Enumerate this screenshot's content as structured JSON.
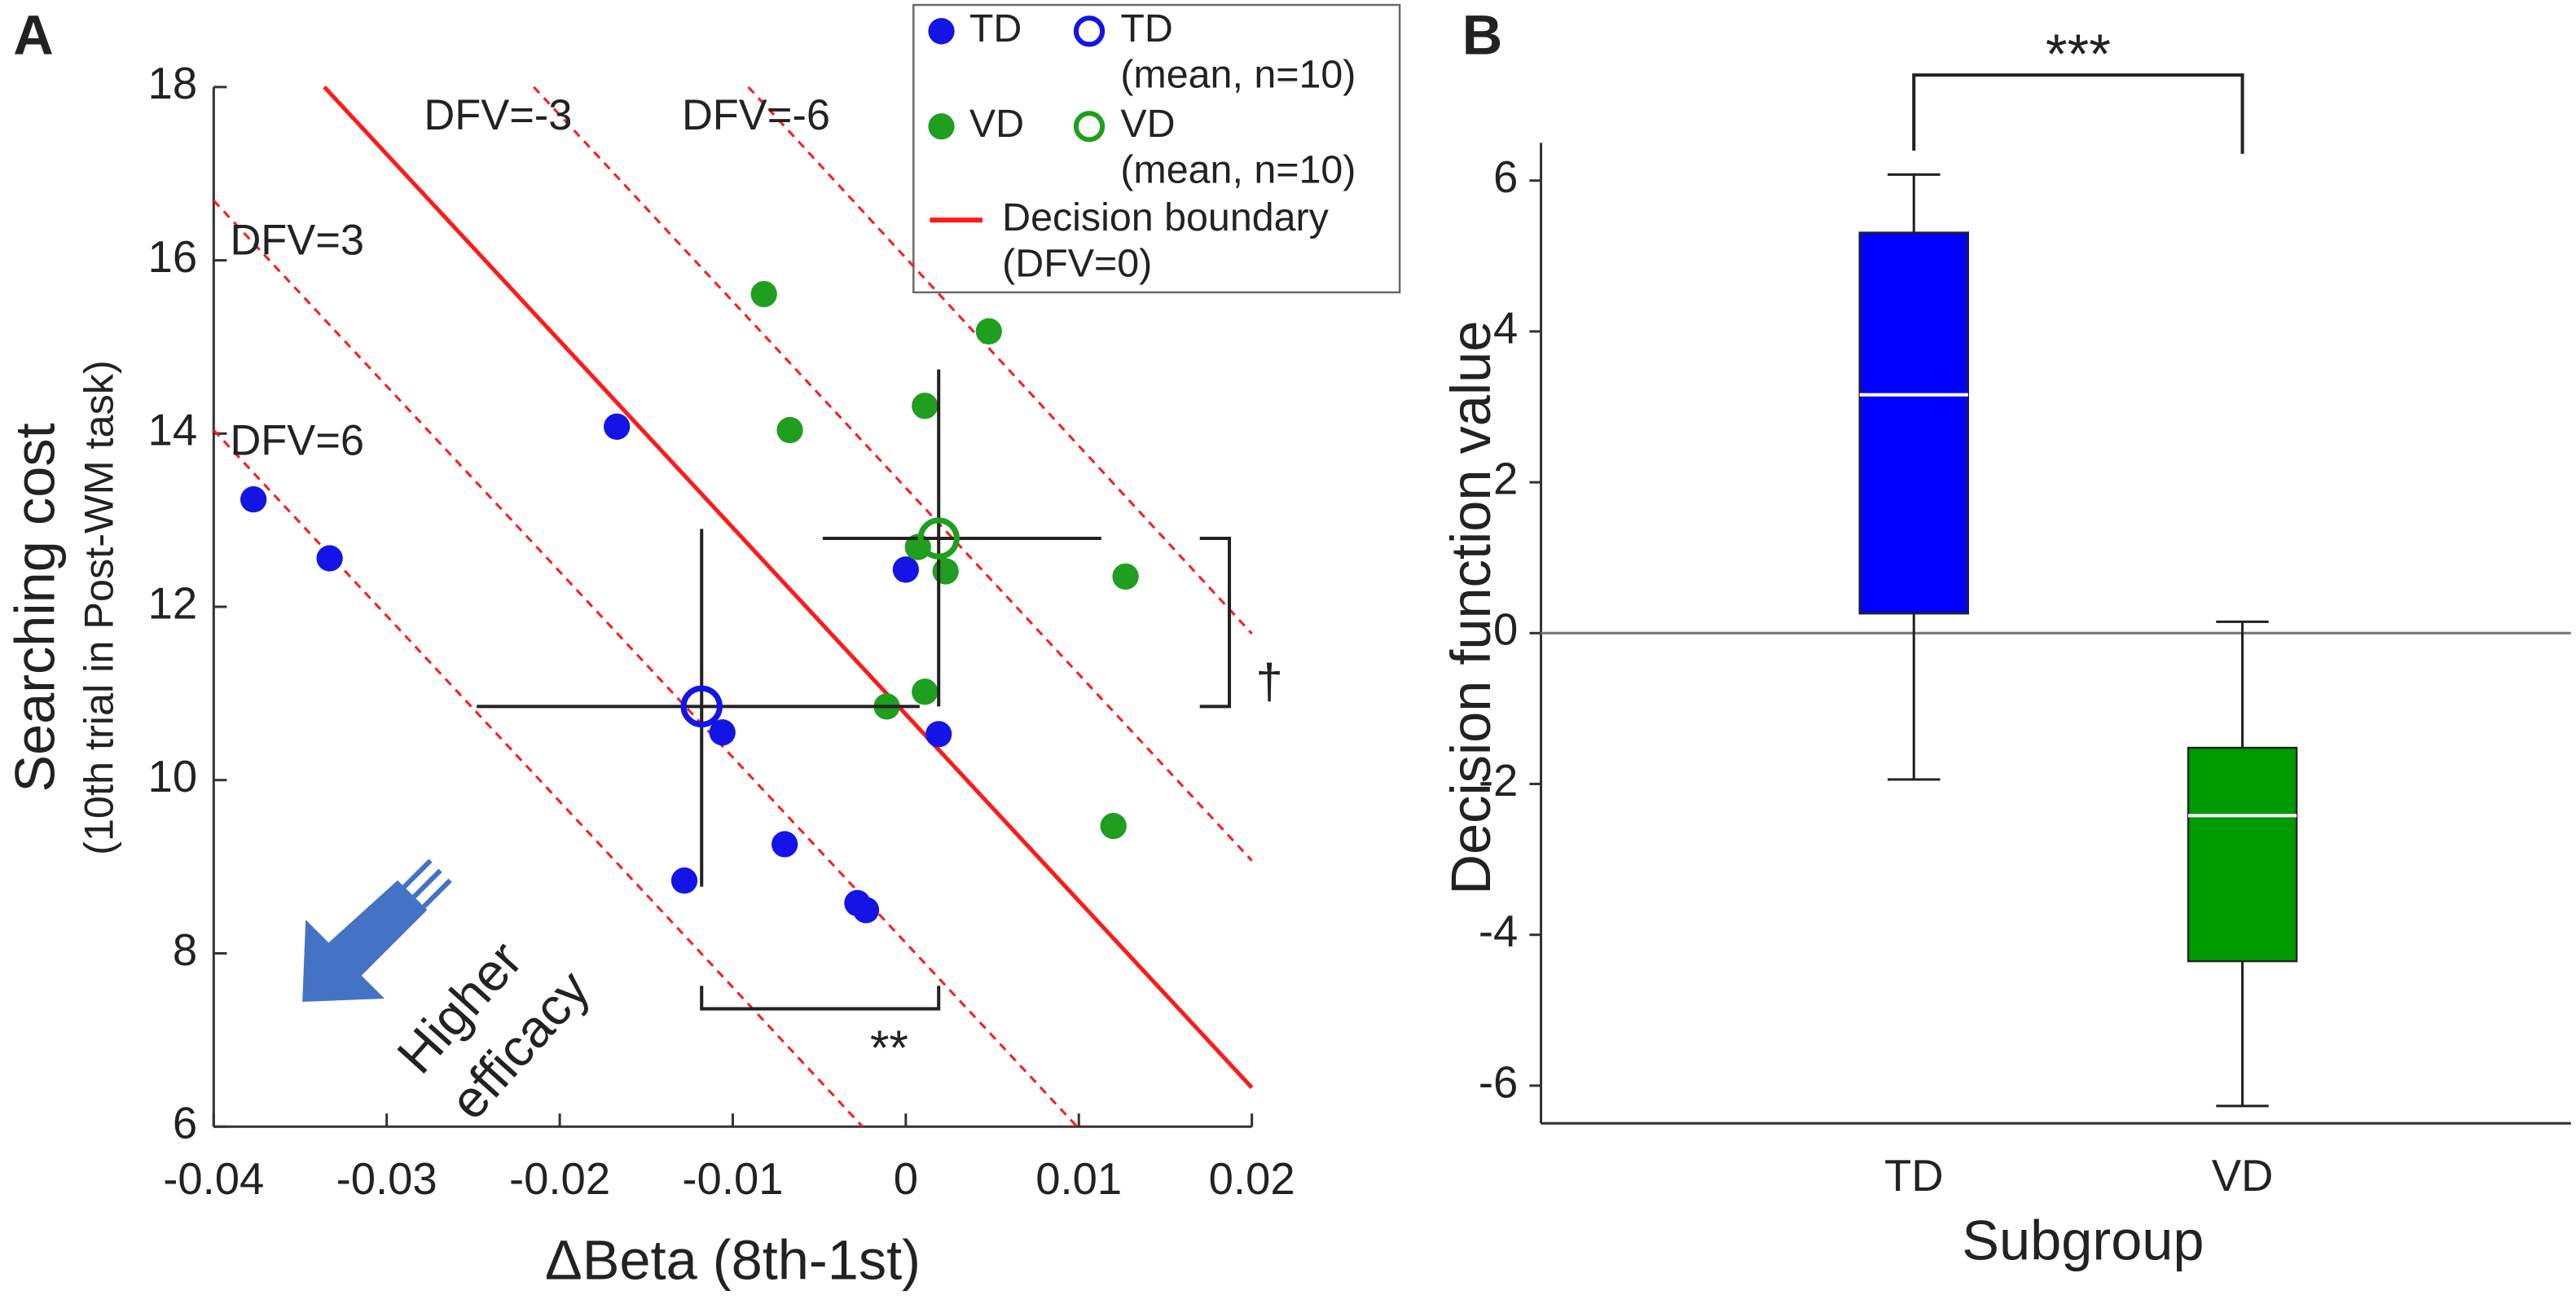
{
  "chart_data": [
    {
      "type": "scatter",
      "panel_label": "A",
      "x_label": "ΔBeta (8th-1st)",
      "y_label": "Searching cost",
      "y_label_sub": "(10th trial in Post-WM task)",
      "xlim": [
        -0.04,
        0.02
      ],
      "xticks": [
        -0.04,
        -0.03,
        -0.02,
        -0.01,
        0,
        0.01,
        0.02
      ],
      "ylim": [
        6,
        18
      ],
      "yticks": [
        6,
        8,
        10,
        12,
        14,
        16,
        18
      ],
      "series": [
        {
          "name": "TD",
          "color": "#1414e6",
          "x": [
            -0.0377,
            -0.0333,
            -0.0167,
            0.0,
            -0.0106,
            0.0019,
            -0.0128,
            -0.007,
            -0.0028,
            -0.0023
          ],
          "values": [
            13.24,
            12.56,
            14.08,
            12.43,
            10.55,
            10.53,
            8.84,
            9.26,
            8.58,
            8.5
          ]
        },
        {
          "name": "VD",
          "color": "#1f9e1f",
          "x": [
            -0.0082,
            0.0048,
            0.0011,
            -0.0067,
            0.0007,
            0.0023,
            0.0127,
            0.0011,
            -0.0011,
            0.012
          ],
          "values": [
            15.61,
            15.18,
            14.32,
            14.04,
            12.69,
            12.41,
            12.35,
            11.02,
            10.85,
            9.47
          ]
        }
      ],
      "means": [
        {
          "name": "TD",
          "sub": "(mean, n=10)",
          "color": "#1414e6",
          "x": -0.0118,
          "value": 10.85,
          "x_range": [
            -0.0248,
            0.0008
          ],
          "y_range": [
            12.9,
            8.77
          ]
        },
        {
          "name": "VD",
          "sub": "(mean, n=10)",
          "color": "#1f9e1f",
          "x": 0.0019,
          "value": 12.79,
          "x_range": [
            -0.0048,
            0.0113
          ],
          "y_range": [
            14.74,
            10.85
          ]
        }
      ],
      "boundary": {
        "name": "Decision boundary",
        "sub": "(DFV=0)",
        "color": "#ff1a1a",
        "x": [
          -0.0336,
          0.02
        ],
        "values": [
          18,
          6.45
        ]
      },
      "dfv_lines": [
        {
          "label": "DFV=-3",
          "x": [
            -0.0215,
            0.02
          ],
          "values": [
            18,
            9.07
          ]
        },
        {
          "label": "DFV=-6",
          "x": [
            -0.0091,
            0.02
          ],
          "values": [
            18,
            11.69
          ]
        },
        {
          "label": "DFV=3",
          "x": [
            -0.04,
            0.0099
          ],
          "values": [
            16.69,
            6
          ]
        },
        {
          "label": "DFV=6",
          "x": [
            -0.04,
            -0.0025
          ],
          "values": [
            14.04,
            6
          ]
        }
      ],
      "annotation": [
        "Higher",
        "efficacy"
      ],
      "sig_x": {
        "label": "**",
        "x_range": [
          -0.0118,
          0.0019
        ],
        "y": 7.36
      },
      "sig_y": {
        "label": "†",
        "y_range": [
          12.79,
          10.85
        ],
        "x": 0.0187
      }
    },
    {
      "type": "box",
      "panel_label": "B",
      "x_label": "Subgroup",
      "y_label": "Decision function value",
      "categories": [
        "TD",
        "VD"
      ],
      "boxes": [
        {
          "color": "#0000ff",
          "min": -1.94,
          "q1": 0.26,
          "median": 3.16,
          "q3": 5.31,
          "max": 6.08
        },
        {
          "color": "#009900",
          "min": -6.27,
          "q1": -4.35,
          "median": -2.42,
          "q3": -1.52,
          "max": 0.15
        }
      ],
      "ylim": [
        -6.5,
        6.5
      ],
      "yticks": [
        -6,
        -4,
        -2,
        0,
        2,
        4,
        6
      ],
      "hline": 0,
      "sig": {
        "label": "***",
        "y": 7.4
      }
    }
  ]
}
